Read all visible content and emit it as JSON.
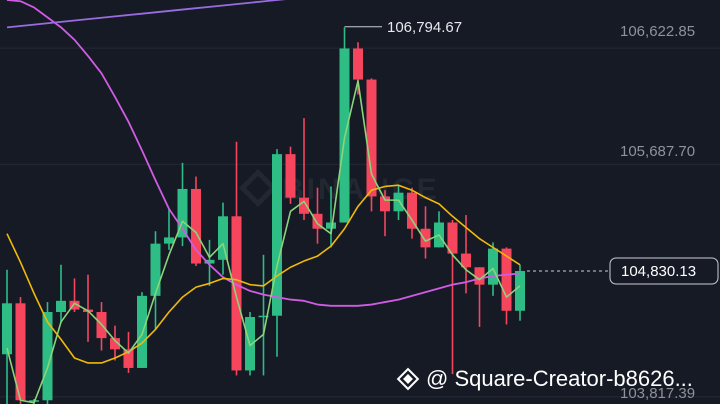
{
  "chart_data": {
    "type": "candlestick",
    "ylim": [
      103760,
      107010
    ],
    "price_ticks": [
      "106,622.85",
      "105,687.70",
      "103,817.39"
    ],
    "high_marker": "106,794.67",
    "last_price": "104,830.13",
    "last_price_value": 104830.13,
    "high_value": 106794.67,
    "watermark": "BINANCE",
    "colors": {
      "up": "#2ebd85",
      "down": "#f6465d",
      "ma_fast": "#8bd47a",
      "ma_mid": "#f0b90b",
      "ma_slow": "#d05ce3",
      "ma_long": "#9a6be0"
    },
    "candles": [
      {
        "o": 104160,
        "h": 104840,
        "l": 103760,
        "c": 104570
      },
      {
        "o": 104570,
        "h": 104620,
        "l": 103760,
        "c": 103790
      },
      {
        "o": 103790,
        "h": 103800,
        "l": 103760,
        "c": 103790
      },
      {
        "o": 103790,
        "h": 104580,
        "l": 103760,
        "c": 104500
      },
      {
        "o": 104500,
        "h": 104880,
        "l": 104410,
        "c": 104590
      },
      {
        "o": 104590,
        "h": 104770,
        "l": 104500,
        "c": 104520
      },
      {
        "o": 104520,
        "h": 104800,
        "l": 104260,
        "c": 104500
      },
      {
        "o": 104500,
        "h": 104580,
        "l": 104190,
        "c": 104290
      },
      {
        "o": 104290,
        "h": 104390,
        "l": 104110,
        "c": 104200
      },
      {
        "o": 104200,
        "h": 104340,
        "l": 104010,
        "c": 104050
      },
      {
        "o": 104050,
        "h": 104660,
        "l": 104050,
        "c": 104630
      },
      {
        "o": 104630,
        "h": 105150,
        "l": 104360,
        "c": 105050
      },
      {
        "o": 105050,
        "h": 105330,
        "l": 105000,
        "c": 105100
      },
      {
        "o": 105100,
        "h": 105700,
        "l": 105030,
        "c": 105490
      },
      {
        "o": 105490,
        "h": 105590,
        "l": 104870,
        "c": 104890
      },
      {
        "o": 104890,
        "h": 105080,
        "l": 104710,
        "c": 104920
      },
      {
        "o": 104920,
        "h": 105380,
        "l": 104800,
        "c": 105270
      },
      {
        "o": 105270,
        "h": 105870,
        "l": 103990,
        "c": 104030
      },
      {
        "o": 104030,
        "h": 104500,
        "l": 103990,
        "c": 104460
      },
      {
        "o": 104460,
        "h": 104960,
        "l": 103990,
        "c": 104470
      },
      {
        "o": 104470,
        "h": 105810,
        "l": 104140,
        "c": 105770
      },
      {
        "o": 105770,
        "h": 105830,
        "l": 105370,
        "c": 105420
      },
      {
        "o": 105420,
        "h": 106060,
        "l": 105240,
        "c": 105290
      },
      {
        "o": 105290,
        "h": 105500,
        "l": 105050,
        "c": 105170
      },
      {
        "o": 105170,
        "h": 105510,
        "l": 105020,
        "c": 105220
      },
      {
        "o": 105220,
        "h": 106790,
        "l": 105220,
        "c": 106620
      },
      {
        "o": 106620,
        "h": 106670,
        "l": 106250,
        "c": 106370
      },
      {
        "o": 106370,
        "h": 106380,
        "l": 105310,
        "c": 105430
      },
      {
        "o": 105430,
        "h": 105480,
        "l": 105110,
        "c": 105310
      },
      {
        "o": 105310,
        "h": 105520,
        "l": 105240,
        "c": 105460
      },
      {
        "o": 105460,
        "h": 105500,
        "l": 105090,
        "c": 105170
      },
      {
        "o": 105170,
        "h": 105350,
        "l": 104930,
        "c": 105020
      },
      {
        "o": 105020,
        "h": 105310,
        "l": 105020,
        "c": 105220
      },
      {
        "o": 105220,
        "h": 105240,
        "l": 104000,
        "c": 104970
      },
      {
        "o": 104970,
        "h": 105280,
        "l": 104650,
        "c": 104860
      },
      {
        "o": 104860,
        "h": 104860,
        "l": 104380,
        "c": 104720
      },
      {
        "o": 104720,
        "h": 105060,
        "l": 104630,
        "c": 105010
      },
      {
        "o": 105010,
        "h": 105020,
        "l": 104400,
        "c": 104510
      },
      {
        "o": 104510,
        "h": 104880,
        "l": 104430,
        "c": 104830
      }
    ],
    "ma_fast": [
      104210,
      103790,
      103770,
      104050,
      104420,
      104570,
      104510,
      104400,
      104270,
      104170,
      104320,
      104650,
      104960,
      105230,
      105140,
      104940,
      105050,
      104620,
      104230,
      104320,
      104870,
      105310,
      105390,
      105210,
      105130,
      105900,
      106360,
      105610,
      105400,
      105400,
      105240,
      105070,
      105120,
      104960,
      104840,
      104760,
      104850,
      104620,
      104710
    ],
    "ma_mid": [
      105130,
      104900,
      104650,
      104420,
      104280,
      104130,
      104090,
      104090,
      104130,
      104180,
      104250,
      104360,
      104500,
      104620,
      104700,
      104730,
      104770,
      104760,
      104720,
      104710,
      104790,
      104860,
      104910,
      104950,
      105030,
      105170,
      105350,
      105480,
      105510,
      105520,
      105480,
      105420,
      105370,
      105270,
      105180,
      105090,
      105020,
      104950,
      104880
    ],
    "ma_slow": [
      107010,
      107000,
      106950,
      106870,
      106790,
      106690,
      106560,
      106420,
      106230,
      106030,
      105800,
      105560,
      105330,
      105170,
      105000,
      104880,
      104780,
      104720,
      104670,
      104640,
      104620,
      104600,
      104590,
      104560,
      104550,
      104550,
      104550,
      104560,
      104580,
      104600,
      104630,
      104660,
      104690,
      104720,
      104740,
      104770,
      104790,
      104800,
      104810
    ]
  }
}
